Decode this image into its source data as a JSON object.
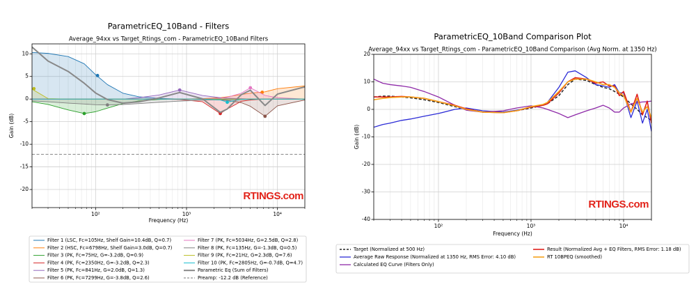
{
  "chart_data": [
    {
      "type": "line",
      "title": "ParametricEQ_10Band - Filters",
      "subtitle": "Average_94xx vs Target_Rtings_com - ParametricEQ_10Band Filters",
      "x_label": "Frequency (Hz)",
      "y_label": "Gain (dB)",
      "watermark": "RTINGS.com",
      "xscale": "log",
      "xlim": [
        20,
        20000
      ],
      "ylim": [
        -24,
        12.2
      ],
      "xticks": [
        {
          "value": 100,
          "label": "10²"
        },
        {
          "value": 1000,
          "label": "10³"
        },
        {
          "value": 10000,
          "label": "10⁴"
        }
      ],
      "xminorticks": [
        20,
        30,
        40,
        50,
        60,
        70,
        80,
        90,
        200,
        300,
        400,
        500,
        600,
        700,
        800,
        900,
        2000,
        3000,
        4000,
        5000,
        6000,
        7000,
        8000,
        9000,
        20000
      ],
      "yticks": [
        -20,
        -15,
        -10,
        -5,
        0,
        5,
        10
      ],
      "grid": true,
      "x": [
        20,
        30,
        50,
        75,
        100,
        135,
        200,
        300,
        500,
        841,
        1500,
        2350,
        2805,
        4000,
        5034,
        7299,
        10000,
        20000
      ],
      "series": [
        {
          "name": "Filter 1 (LSC, Fc=105Hz, Shelf Gain=10.4dB, Q=0.7)",
          "color": "#1f77b4",
          "fill": true,
          "marker": [
            105,
            5.2
          ],
          "values": [
            10.3,
            10.1,
            9.4,
            7.8,
            5.4,
            3.2,
            1.3,
            0.5,
            0.15,
            0,
            0,
            0,
            0,
            0,
            0,
            0,
            0,
            0
          ]
        },
        {
          "name": "Filter 2 (HSC, Fc=6798Hz, Shelf Gain=3.0dB, Q=0.7)",
          "color": "#ff7f0e",
          "fill": true,
          "marker": [
            6798,
            1.5
          ],
          "values": [
            0,
            0,
            0,
            0,
            0,
            0,
            0,
            0,
            0,
            0,
            0.1,
            0.3,
            0.5,
            1.0,
            1.3,
            1.6,
            2.3,
            2.9
          ]
        },
        {
          "name": "Filter 3 (PK, Fc=75Hz, G=-3.2dB, Q=0.9)",
          "color": "#2ca02c",
          "fill": true,
          "marker": [
            75,
            -3.2
          ],
          "values": [
            -0.6,
            -1.2,
            -2.4,
            -3.2,
            -2.8,
            -2.0,
            -1.0,
            -0.4,
            -0.1,
            0,
            0,
            0,
            0,
            0,
            0,
            0,
            0,
            0
          ]
        },
        {
          "name": "Filter 4 (PK, Fc=2350Hz, G=-3.2dB, Q=2.3)",
          "color": "#d62728",
          "fill": true,
          "marker": [
            2350,
            -3.2
          ],
          "values": [
            0,
            0,
            0,
            0,
            0,
            0,
            0,
            0,
            0,
            -0.1,
            -0.6,
            -3.2,
            -2.2,
            -0.5,
            -0.2,
            0,
            0,
            0
          ]
        },
        {
          "name": "Filter 5 (PK, Fc=841Hz, G=2.0dB, Q=1.3)",
          "color": "#9467bd",
          "fill": true,
          "marker": [
            841,
            2.0
          ],
          "values": [
            0,
            0,
            0,
            0,
            0,
            0,
            0,
            0.3,
            0.9,
            2.0,
            0.8,
            0.3,
            0.2,
            0.1,
            0,
            0,
            0,
            0
          ]
        },
        {
          "name": "Filter 6 (PK, Fc=7299Hz, G=-3.8dB, Q=2.6)",
          "color": "#8c564b",
          "fill": true,
          "marker": [
            7299,
            -3.8
          ],
          "values": [
            0,
            0,
            0,
            0,
            0,
            0,
            0,
            0,
            0,
            0,
            0,
            -0.2,
            -0.3,
            -0.8,
            -1.6,
            -3.8,
            -1.5,
            -0.2
          ]
        },
        {
          "name": "Filter 7 (PK, Fc=5034Hz, G=2.5dB, Q=2.8)",
          "color": "#e377c2",
          "fill": true,
          "marker": [
            5034,
            2.5
          ],
          "values": [
            0,
            0,
            0,
            0,
            0,
            0,
            0,
            0,
            0,
            0,
            0,
            0.2,
            0.4,
            1.3,
            2.5,
            0.8,
            0.3,
            0
          ]
        },
        {
          "name": "Filter 8 (PK, Fc=135Hz, G=-1.3dB, Q=0.5)",
          "color": "#7f7f7f",
          "fill": true,
          "marker": [
            135,
            -1.3
          ],
          "values": [
            -0.4,
            -0.6,
            -0.9,
            -1.1,
            -1.25,
            -1.3,
            -1.2,
            -1.0,
            -0.7,
            -0.45,
            -0.25,
            -0.15,
            -0.1,
            -0.07,
            -0.05,
            -0.03,
            0,
            0
          ]
        },
        {
          "name": "Filter 9 (PK, Fc=21Hz, G=2.3dB, Q=7.6)",
          "color": "#bcbd22",
          "fill": true,
          "marker": [
            21,
            2.3
          ],
          "values": [
            2.2,
            0.1,
            0,
            0,
            0,
            0,
            0,
            0,
            0,
            0,
            0,
            0,
            0,
            0,
            0,
            0,
            0,
            0
          ]
        },
        {
          "name": "Filter 10 (PK, Fc=2805Hz, G=-0.7dB, Q=4.7)",
          "color": "#17becf",
          "fill": true,
          "marker": [
            2805,
            -0.7
          ],
          "values": [
            0,
            0,
            0,
            0,
            0,
            0,
            0,
            0,
            0,
            0,
            0,
            -0.2,
            -0.7,
            -0.05,
            0,
            0,
            0,
            0
          ]
        },
        {
          "name": "Parametric Eq (Sum of Filters)",
          "color": "#888888",
          "width": 2,
          "values": [
            11.5,
            8.4,
            6.1,
            3.5,
            1.35,
            -0.1,
            -0.9,
            -0.6,
            0.25,
            1.45,
            0.05,
            -2.95,
            -2.2,
            0.98,
            1.95,
            -1.43,
            1.1,
            2.7
          ]
        },
        {
          "name": "Preamp: -12.2 dB (Reference)",
          "color": "#777777",
          "dash": true,
          "x": [
            20,
            20000
          ],
          "values": [
            -12.2,
            -12.2
          ]
        }
      ]
    },
    {
      "type": "line",
      "title": "ParametricEQ_10Band Comparison Plot",
      "subtitle": "Average_94xx vs Target_Rtings_com - ParametricEQ_10Band Comparison (Avg Norm. at 1350 Hz)",
      "x_label": "Frequency (Hz)",
      "y_label": "Gain (dB)",
      "watermark": "RTINGS.com",
      "xscale": "log",
      "xlim": [
        20,
        20000
      ],
      "ylim": [
        -40,
        20
      ],
      "xticks": [
        {
          "value": 100,
          "label": "10²"
        },
        {
          "value": 1000,
          "label": "10³"
        },
        {
          "value": 10000,
          "label": "10⁴"
        }
      ],
      "xminorticks": [
        20,
        30,
        40,
        50,
        60,
        70,
        80,
        90,
        200,
        300,
        400,
        500,
        600,
        700,
        800,
        900,
        2000,
        3000,
        4000,
        5000,
        6000,
        7000,
        8000,
        9000,
        20000
      ],
      "yticks": [
        -40,
        -30,
        -20,
        -10,
        0,
        10,
        20
      ],
      "grid": true,
      "x": [
        20,
        25,
        30,
        40,
        50,
        70,
        100,
        150,
        200,
        300,
        500,
        700,
        1000,
        1350,
        1500,
        2000,
        2500,
        3000,
        4000,
        5000,
        6000,
        7000,
        8000,
        9000,
        10000,
        12000,
        14000,
        16000,
        18000,
        20000
      ],
      "series": [
        {
          "name": "Target (Normalized at 500 Hz)",
          "color": "#222222",
          "dash": true,
          "width": 1.5,
          "values": [
            4.5,
            4.8,
            4.8,
            4.5,
            4.2,
            3.5,
            2.5,
            1,
            0,
            -1,
            -1,
            -0.5,
            0.5,
            1.5,
            2,
            5,
            9,
            11,
            10.5,
            9,
            8,
            7.5,
            6.5,
            5.5,
            4.5,
            2,
            0,
            -2,
            -3,
            -4
          ]
        },
        {
          "name": "Average Raw Response (Normalized at 1350 Hz, RMS Error: 4.10 dB)",
          "color": "#2b2bd6",
          "width": 1.3,
          "values": [
            -6.5,
            -5.5,
            -5,
            -4,
            -3.5,
            -2.5,
            -1.5,
            0,
            0.5,
            -0.5,
            -1,
            -0.3,
            0.8,
            1.5,
            2.5,
            8,
            13.5,
            14,
            11.5,
            9,
            8.5,
            8,
            9,
            6,
            6,
            -3,
            3,
            -5,
            0,
            -8
          ]
        },
        {
          "name": "Calculated EQ Curve (Filters Only)",
          "color": "#8e2aa8",
          "width": 1.3,
          "values": [
            11,
            9.5,
            9,
            8.5,
            8,
            6.5,
            4.5,
            1.5,
            -0.3,
            -1,
            -0.5,
            0.5,
            1.3,
            0.5,
            0,
            -1.5,
            -3,
            -2,
            -0.5,
            0.5,
            1.5,
            0.5,
            -1,
            -1,
            0.5,
            2,
            2.5,
            2.7,
            2.8,
            3
          ]
        },
        {
          "name": "Result (Normalized Avg + EQ Filters, RMS Error: 1.18 dB)",
          "color": "#e0201b",
          "width": 1.6,
          "values": [
            4.5,
            4.5,
            4.5,
            4.7,
            4.5,
            4,
            2.8,
            1.5,
            0.2,
            -1,
            -1.2,
            -0.5,
            0.8,
            1.5,
            2,
            6,
            10,
            11.5,
            11,
            9.5,
            10,
            8.5,
            8.5,
            5,
            6.5,
            -1,
            5.5,
            -2,
            3,
            -5
          ]
        },
        {
          "name": "RT 10BPEQ (smoothed)",
          "color": "#f5a21a",
          "width": 1.6,
          "values": [
            3.5,
            4,
            4.3,
            4.5,
            4.5,
            4,
            2.8,
            1.3,
            0,
            -1,
            -1.2,
            -0.5,
            1,
            1.8,
            2.5,
            6.5,
            10,
            11,
            11,
            10,
            9,
            9,
            8,
            6,
            5,
            -1,
            4,
            -1,
            1,
            -3
          ]
        }
      ]
    }
  ]
}
